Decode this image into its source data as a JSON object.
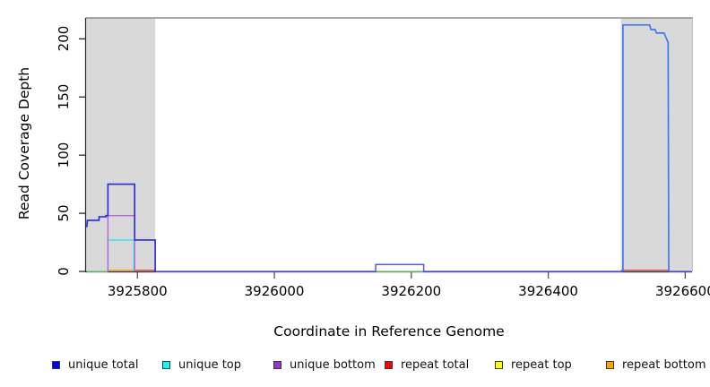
{
  "figure": {
    "x_axis_label": "Coordinate in Reference Genome",
    "y_axis_label": "Read Coverage Depth"
  },
  "chart_data": {
    "type": "line",
    "title": "",
    "xlabel": "Coordinate in Reference Genome",
    "ylabel": "Read Coverage Depth",
    "xlim": [
      3925725,
      3926610
    ],
    "ylim": [
      0,
      218
    ],
    "x_ticks": [
      3925800,
      3926000,
      3926200,
      3926400,
      3926600
    ],
    "y_ticks": [
      0,
      50,
      100,
      150,
      200
    ],
    "grid": false,
    "legend_position": "bottom",
    "shaded_regions": [
      {
        "name": "left-repeat-region",
        "x0": 3925725,
        "x1": 3925826,
        "color": "#d9d9d9"
      },
      {
        "name": "right-repeat-region",
        "x0": 3926506,
        "x1": 3926610,
        "color": "#d9d9d9"
      }
    ],
    "series": [
      {
        "name": "overlap-top-strands-baseline-left",
        "color": "#82cc82",
        "width": 1.4,
        "points": [
          [
            3925726,
            0
          ],
          [
            3925757,
            0
          ]
        ]
      },
      {
        "name": "overlap-top-strands-baseline-bump",
        "color": "#82cc82",
        "width": 1.4,
        "points": [
          [
            3926148,
            0
          ],
          [
            3926218,
            0
          ]
        ]
      },
      {
        "name": "repeat-total-left",
        "color": "#dd4257",
        "width": 1.4,
        "points": [
          [
            3925796,
            0
          ],
          [
            3925796,
            1
          ],
          [
            3925826,
            1
          ],
          [
            3925826,
            0
          ]
        ]
      },
      {
        "name": "repeat-total-right",
        "color": "#dd4257",
        "width": 1.4,
        "points": [
          [
            3926506,
            1
          ],
          [
            3926577,
            1
          ]
        ]
      },
      {
        "name": "repeat-bottom",
        "color": "#ff9815",
        "width": 1.4,
        "points": [
          [
            3925757,
            0
          ],
          [
            3925757,
            1
          ],
          [
            3925796,
            1
          ],
          [
            3925796,
            0
          ]
        ]
      },
      {
        "name": "unique-total-baseline-mid",
        "color": "#5b55e0",
        "width": 1.5,
        "points": [
          [
            3925826,
            0
          ],
          [
            3926148,
            0
          ],
          [
            3926148,
            6
          ],
          [
            3926218,
            6
          ],
          [
            3926218,
            0
          ],
          [
            3926509,
            0
          ]
        ]
      },
      {
        "name": "unique-total-baseline-right-tail",
        "color": "#5b55e0",
        "width": 1.5,
        "points": [
          [
            3926576,
            0
          ],
          [
            3926609,
            0
          ]
        ]
      },
      {
        "name": "unique-top",
        "color": "#2ee0e8",
        "width": 1.4,
        "points": [
          [
            3925757,
            0
          ],
          [
            3925757,
            27
          ],
          [
            3925795,
            27
          ],
          [
            3925795,
            0
          ]
        ]
      },
      {
        "name": "unique-bottom",
        "color": "#b565e0",
        "width": 1.4,
        "points": [
          [
            3925757,
            0
          ],
          [
            3925757,
            48
          ],
          [
            3925796,
            48
          ],
          [
            3925796,
            0
          ]
        ]
      },
      {
        "name": "unique-total-left-block",
        "color": "#2525ee",
        "width": 1.6,
        "points": [
          [
            3925726,
            38
          ],
          [
            3925727,
            44
          ],
          [
            3925744,
            44
          ],
          [
            3925744,
            47
          ],
          [
            3925754,
            47
          ],
          [
            3925754,
            48
          ],
          [
            3925757,
            48
          ],
          [
            3925757,
            75
          ],
          [
            3925796,
            75
          ],
          [
            3925796,
            27
          ],
          [
            3925826,
            27
          ],
          [
            3925826,
            0
          ]
        ]
      },
      {
        "name": "unique-total-right-block",
        "color": "#3d7bf0",
        "width": 1.7,
        "points": [
          [
            3926509,
            0
          ],
          [
            3926509,
            212
          ],
          [
            3926548,
            212
          ],
          [
            3926550,
            208
          ],
          [
            3926556,
            208
          ],
          [
            3926558,
            205
          ],
          [
            3926569,
            205
          ],
          [
            3926572,
            201
          ],
          [
            3926575,
            197
          ],
          [
            3926576,
            0
          ]
        ]
      }
    ],
    "legend": [
      {
        "label": "unique total",
        "color": "#0000ff"
      },
      {
        "label": "unique top",
        "color": "#00ffff"
      },
      {
        "label": "unique bottom",
        "color": "#9933cc"
      },
      {
        "label": "repeat total",
        "color": "#ff0000"
      },
      {
        "label": "repeat top",
        "color": "#ffff00"
      },
      {
        "label": "repeat bottom",
        "color": "#ffa500"
      }
    ]
  }
}
